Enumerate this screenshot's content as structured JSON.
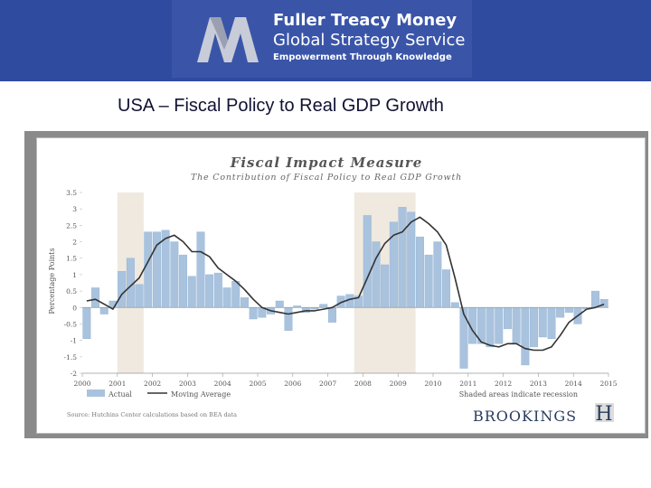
{
  "header": {
    "logo_line1": "Fuller Treacy Money",
    "logo_line2": "Global Strategy Service",
    "logo_line3": "Empowerment Through Knowledge"
  },
  "slide_title": "USA – Fiscal Policy to Real GDP Growth",
  "colors": {
    "header_bg": "#2f4ba0",
    "bar": "#a9c3de",
    "bar_edge": "#8fb0d3",
    "line": "#333333",
    "recession": "#efe9e0"
  },
  "chart_data": {
    "type": "bar",
    "title": "Fiscal Impact Measure",
    "subtitle": "The Contribution of Fiscal Policy to Real GDP Growth",
    "ylabel": "Percentage Points",
    "xlabel": "",
    "ylim": [
      -2,
      3.5
    ],
    "yticks": [
      -2,
      -1.5,
      -1,
      -0.5,
      0,
      0.5,
      1,
      1.5,
      2,
      2.5,
      3,
      3.5
    ],
    "x_tick_labels": [
      "2000",
      "2001",
      "2002",
      "2003",
      "2004",
      "2005",
      "2006",
      "2007",
      "2008",
      "2009",
      "2010",
      "2011",
      "2012",
      "2013",
      "2014",
      "2015"
    ],
    "x_start": 2000,
    "periods_per_year": 4,
    "recessions": [
      [
        2001.0,
        2001.75
      ],
      [
        2007.75,
        2009.5
      ]
    ],
    "series": [
      {
        "name": "Actual",
        "kind": "bar",
        "values": [
          -0.95,
          0.6,
          -0.2,
          0.2,
          1.1,
          1.5,
          0.7,
          2.3,
          2.3,
          2.35,
          2.0,
          1.6,
          0.95,
          2.3,
          1.0,
          1.05,
          0.6,
          0.8,
          0.3,
          -0.35,
          -0.3,
          -0.2,
          0.2,
          -0.7,
          0.05,
          -0.15,
          -0.05,
          0.1,
          -0.45,
          0.35,
          0.4,
          0.35,
          2.8,
          2.0,
          1.3,
          2.6,
          3.05,
          2.9,
          2.15,
          1.6,
          2.0,
          1.15,
          0.15,
          -1.85,
          -1.1,
          -1.1,
          -1.2,
          -1.1,
          -0.65,
          -1.1,
          -1.75,
          -1.2,
          -0.9,
          -0.95,
          -0.3,
          -0.15,
          -0.5,
          -0.05,
          0.5,
          0.25
        ]
      },
      {
        "name": "Moving Average",
        "kind": "line",
        "values": [
          0.2,
          0.25,
          0.1,
          -0.05,
          0.4,
          0.65,
          0.9,
          1.4,
          1.9,
          2.1,
          2.2,
          2.0,
          1.7,
          1.7,
          1.55,
          1.2,
          1.0,
          0.8,
          0.55,
          0.25,
          0.0,
          -0.1,
          -0.15,
          -0.2,
          -0.15,
          -0.1,
          -0.1,
          -0.05,
          0.0,
          0.15,
          0.25,
          0.3,
          0.9,
          1.5,
          1.95,
          2.2,
          2.3,
          2.6,
          2.75,
          2.55,
          2.3,
          1.9,
          0.9,
          -0.2,
          -0.7,
          -1.05,
          -1.15,
          -1.2,
          -1.1,
          -1.1,
          -1.25,
          -1.3,
          -1.3,
          -1.2,
          -0.85,
          -0.45,
          -0.25,
          -0.05,
          0.0,
          0.1
        ]
      }
    ],
    "legend": {
      "placement": "bottom-left",
      "actual": "Actual",
      "moving_average": "Moving Average"
    },
    "recession_note": "Shaded areas indicate recession",
    "source": "Source: Hutchins Center calculations based on BEA data",
    "brand": "BROOKINGS",
    "brand_mark": "H"
  }
}
